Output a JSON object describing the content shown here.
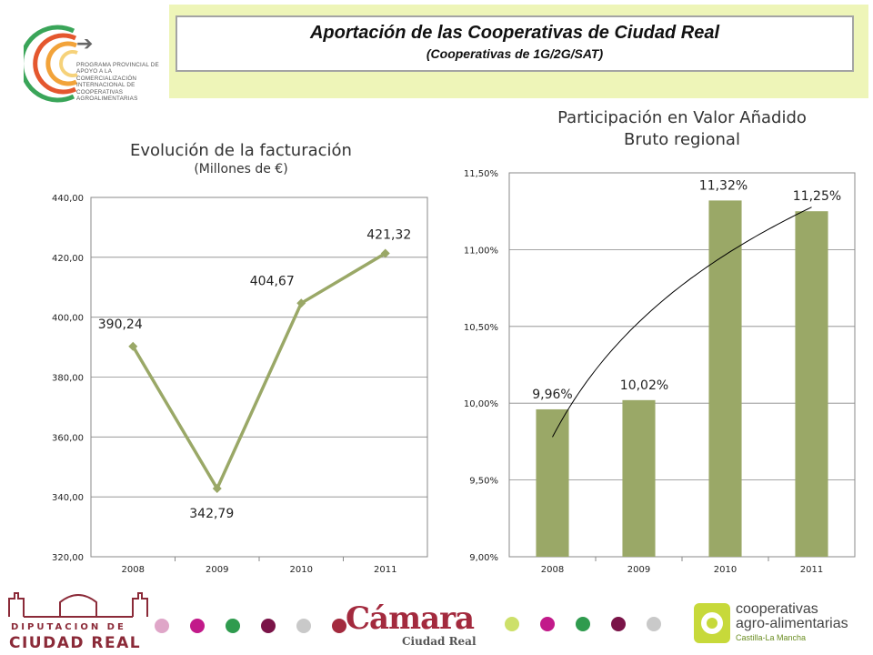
{
  "header": {
    "title": "Aportación de las Cooperativas de Ciudad Real",
    "subtitle": "(Cooperativas de 1G/2G/SAT)"
  },
  "program_logo": {
    "text": "PROGRAMA PROVINCIAL DE APOYO A LA COMERCIALIZACIÓN INTERNACIONAL DE COOPERATIVAS AGROALIMENTARIAS",
    "arrow_icon": "arrow-right-icon"
  },
  "footer": {
    "diputacion_line1": "DIPUTACION DE",
    "diputacion_line2": "CIUDAD REAL",
    "camara_name": "Cámara",
    "camara_city": "Ciudad Real",
    "coop_line1": "cooperativas",
    "coop_line2": "agro-alimentarias",
    "coop_line3": "Castilla-La Mancha",
    "dots_left": [
      "#dfa6c8",
      "#c21a8a",
      "#2f9b4e",
      "#7a1448",
      "#c9c9c9",
      "#a32a3e"
    ],
    "dots_right": [
      "#cde06a",
      "#c21a8a",
      "#2f9b4e",
      "#7a1448",
      "#c9c9c9"
    ]
  },
  "colors": {
    "series": "#9aa867",
    "header_band": "#eef5b8",
    "brand": "#a32a3e"
  },
  "chart_data": [
    {
      "type": "line",
      "title": "Evolución de la facturación",
      "subtitle": "(Millones de €)",
      "categories": [
        "2008",
        "2009",
        "2010",
        "2011"
      ],
      "values": [
        390.24,
        342.79,
        404.67,
        421.32
      ],
      "value_labels": [
        "390,24",
        "342,79",
        "404,67",
        "421,32"
      ],
      "ylim": [
        320,
        440
      ],
      "yticks": [
        "320,00",
        "340,00",
        "360,00",
        "380,00",
        "400,00",
        "420,00",
        "440,00"
      ],
      "grid": true,
      "legend": "none"
    },
    {
      "type": "bar",
      "title": "Participación en Valor Añadido Bruto regional",
      "title_line1": "Participación en Valor Añadido",
      "title_line2": "Bruto regional",
      "categories": [
        "2008",
        "2009",
        "2010",
        "2011"
      ],
      "values": [
        9.96,
        10.02,
        11.32,
        11.25
      ],
      "value_labels": [
        "9,96%",
        "10,02%",
        "11,32%",
        "11,25%"
      ],
      "ylim": [
        9.0,
        11.5
      ],
      "yticks": [
        "9,00%",
        "9,50%",
        "10,00%",
        "10,50%",
        "11,00%",
        "11,50%"
      ],
      "trendline": "logarithmic",
      "grid": true,
      "legend": "none"
    }
  ]
}
